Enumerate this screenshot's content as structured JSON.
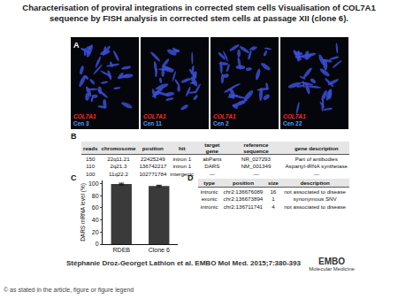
{
  "title": "Characterisation of proviral integrations in corrected stem cells Visualisation of COL7A1 sequence by FISH analysis in corrected stem cells at passage XII (clone 6).",
  "panel_A": {
    "label": "A",
    "images": [
      {
        "gene": "COL7A1",
        "probe": "Cen 3"
      },
      {
        "gene": "COL7A1",
        "probe": "Cen 11"
      },
      {
        "gene": "COL7A1",
        "probe": "Cen 2"
      },
      {
        "gene": "COL7A1",
        "probe": "Cen 22"
      }
    ]
  },
  "panel_B": {
    "label": "B",
    "table": {
      "header": [
        "reads",
        "chromosome",
        "position",
        "hit",
        "target gene",
        "reference sequence",
        "gene description"
      ],
      "rows": [
        [
          "150",
          "22q11.21",
          "22425249",
          "intron 1",
          "abParts",
          "NR_027293",
          "Part of antibodies"
        ],
        [
          "110",
          "2q21.3",
          "136742217",
          "intron 1",
          "DARS",
          "NM_001349",
          "Aspartyl-tRNA synthetase"
        ],
        [
          "100",
          "11q22.2",
          "102771784",
          "intergenic",
          "—",
          "—",
          "—"
        ]
      ]
    }
  },
  "chart_data": {
    "label": "C",
    "type": "bar",
    "categories": [
      "RDEB",
      "Clone 6"
    ],
    "values": [
      99,
      96
    ],
    "error": [
      1.5,
      1.2
    ],
    "color": "#3a3a3a",
    "y_label": "DARS mRNA level (%)",
    "ylim": [
      0,
      105
    ],
    "yticks": [
      0,
      20,
      40,
      60,
      80,
      100
    ],
    "grid": false
  },
  "panel_D": {
    "label": "D",
    "table": {
      "header": [
        "type",
        "position",
        "size",
        "description"
      ],
      "rows": [
        [
          "intronic",
          "chr2:136676089",
          "16",
          "not associated to disease"
        ],
        [
          "exonic",
          "chr2:136673894",
          "1",
          "synonymous SNV"
        ],
        [
          "intronic",
          "chr2:136711741",
          "4",
          "not associated to disease"
        ]
      ]
    }
  },
  "citation": "Stéphanie Droz-Georget Lathion et al. EMBO Mol Med. 2015;7:380-393",
  "logo": {
    "line1": "EMBO",
    "line2": "Molecular Medicine"
  },
  "copyright": "© as stated in the article, figure or figure legend"
}
